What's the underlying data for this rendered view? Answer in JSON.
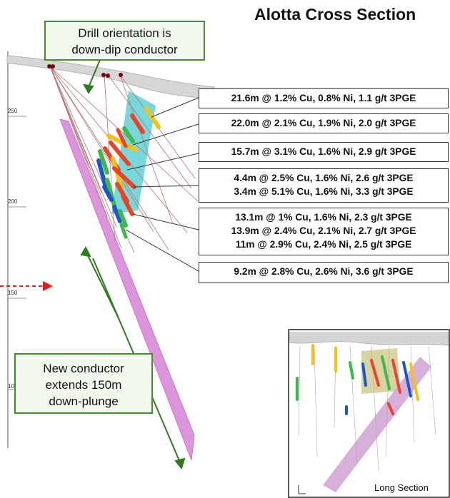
{
  "title": "Alotta Cross Section",
  "callouts": {
    "drill_orientation": [
      "Drill orientation is",
      "down-dip conductor"
    ],
    "new_conductor": [
      "New conductor",
      "extends 150m",
      "down-plunge"
    ]
  },
  "results": [
    [
      "21.6m @ 1.2% Cu, 0.8% Ni, 1.1 g/t 3PGE"
    ],
    [
      "22.0m @ 2.1% Cu, 1.9% Ni, 2.0 g/t 3PGE"
    ],
    [
      "15.7m @ 3.1% Cu, 1.6% Ni, 2.9 g/t 3PGE"
    ],
    [
      "4.4m @ 2.5% Cu, 1.6% Ni, 2.6 g/t 3PGE",
      "3.4m @ 5.1% Cu, 1.6% Ni, 3.3 g/t 3PGE"
    ],
    [
      "13.1m @ 1% Cu, 1.6% Ni, 2.3 g/t 3PGE",
      "13.9m @ 2.4% Cu, 2.1% Ni, 2.7 g/t 3PGE",
      "11m @ 2.9% Cu, 2.4% Ni, 2.5 g/t 3PGE"
    ],
    [
      "9.2m @ 2.8% Cu, 2.6% Ni, 3.6 g/t 3PGE"
    ]
  ],
  "elevation_ticks": [
    "250",
    "200",
    "150",
    "10"
  ],
  "inset_label": "Long Section",
  "colors": {
    "callout_border": "#4c8a2e",
    "conductor_cyan": "#3fc7cf",
    "conductor_magenta": "#d97fd9",
    "arrow_red": "#e02020",
    "drill_trace": "#b07070"
  }
}
